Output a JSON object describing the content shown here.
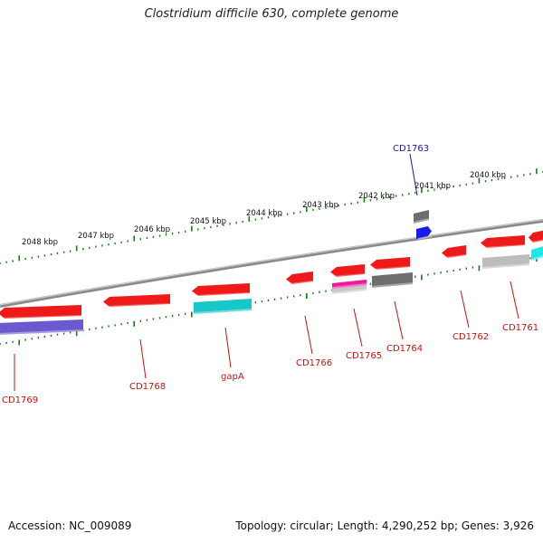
{
  "title": "Clostridium difficile 630, complete genome",
  "footer": {
    "accession": "Accession: NC_009089",
    "topology": "Topology: circular; Length: 4,290,252 bp; Genes: 3,926"
  },
  "colors": {
    "backbone": "#8a8a8a",
    "tick": "#1a7a1a",
    "forward_label": "#1a1aa8",
    "reverse_label": "#cc1111"
  },
  "scale_labels": [
    "2048 kbp",
    "2047 kbp",
    "2046 kbp",
    "2045 kbp",
    "2044 kbp",
    "2043 kbp",
    "2042 kbp",
    "2041 kbp",
    "2040 kbp"
  ],
  "genes": [
    {
      "name": "CD1769",
      "strand": "reverse",
      "color": "#ee1111"
    },
    {
      "name": "CD1768",
      "strand": "reverse",
      "color": "#ee1111"
    },
    {
      "name": "gapA",
      "strand": "reverse",
      "color": "#ee1111"
    },
    {
      "name": "CD1766",
      "strand": "reverse",
      "color": "#ee1111"
    },
    {
      "name": "CD1765",
      "strand": "reverse",
      "color": "#ee1111"
    },
    {
      "name": "CD1764",
      "strand": "reverse",
      "color": "#ee1111"
    },
    {
      "name": "CD1763",
      "strand": "forward",
      "color": "#1111ee"
    },
    {
      "name": "CD1762",
      "strand": "reverse",
      "color": "#ee1111"
    },
    {
      "name": "CD1761",
      "strand": "reverse",
      "color": "#ee1111"
    }
  ]
}
